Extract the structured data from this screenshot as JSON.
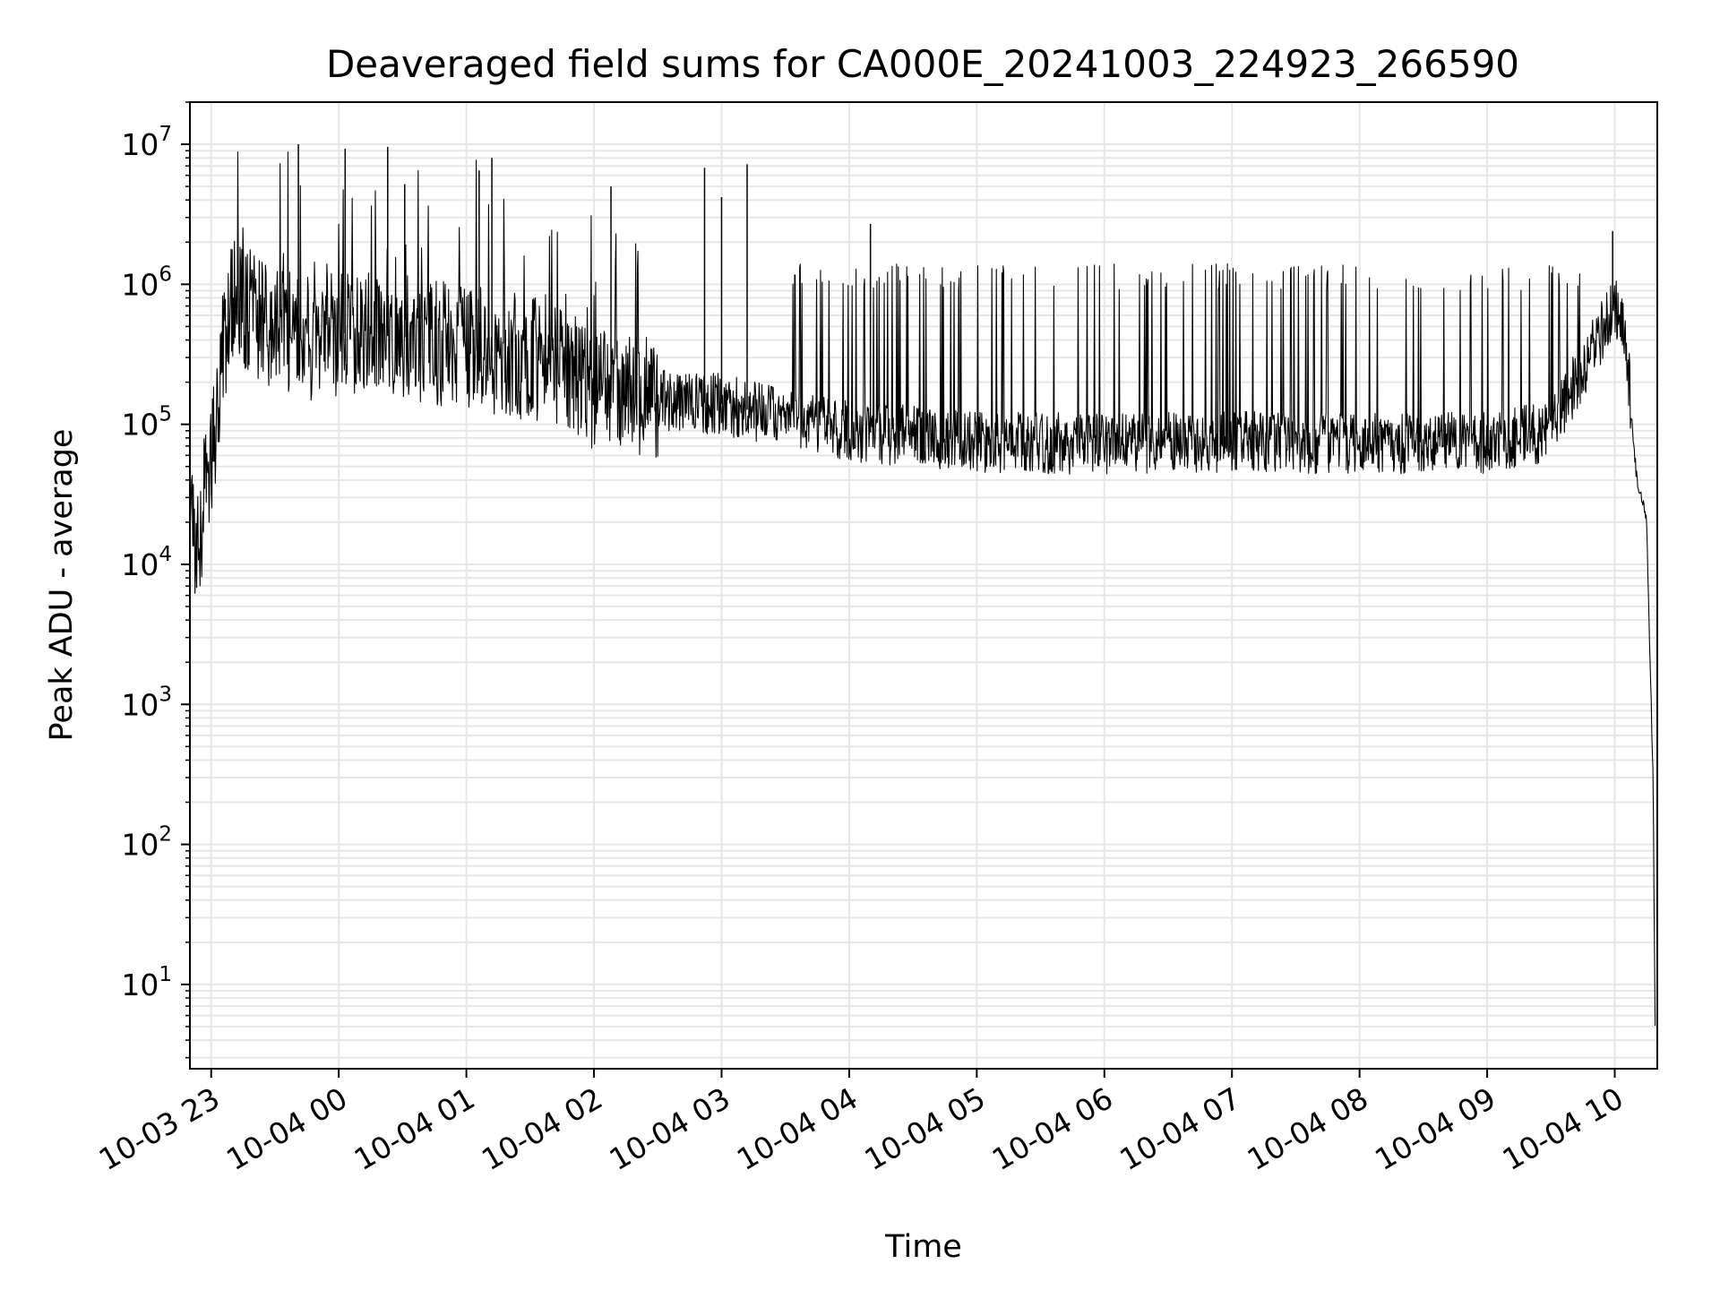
{
  "chart_data": {
    "type": "line",
    "title": "Deaveraged field sums for CA000E_20241003_224923_266590",
    "xlabel": "Time",
    "ylabel": "Peak ADU - average",
    "yscale": "log",
    "ylim": [
      2.5,
      20000000
    ],
    "xlim": [
      "2024-10-03 22:50:00",
      "2024-10-04 10:20:00"
    ],
    "x_ticks": [
      {
        "value": "2024-10-03 23:00",
        "label": "10-03 23"
      },
      {
        "value": "2024-10-04 00:00",
        "label": "10-04 00"
      },
      {
        "value": "2024-10-04 01:00",
        "label": "10-04 01"
      },
      {
        "value": "2024-10-04 02:00",
        "label": "10-04 02"
      },
      {
        "value": "2024-10-04 03:00",
        "label": "10-04 03"
      },
      {
        "value": "2024-10-04 04:00",
        "label": "10-04 04"
      },
      {
        "value": "2024-10-04 05:00",
        "label": "10-04 05"
      },
      {
        "value": "2024-10-04 06:00",
        "label": "10-04 06"
      },
      {
        "value": "2024-10-04 07:00",
        "label": "10-04 07"
      },
      {
        "value": "2024-10-04 08:00",
        "label": "10-04 08"
      },
      {
        "value": "2024-10-04 09:00",
        "label": "10-04 09"
      },
      {
        "value": "2024-10-04 10:00",
        "label": "10-04 10"
      }
    ],
    "y_ticks": [
      {
        "value": 10,
        "base": "10",
        "exp": "1"
      },
      {
        "value": 100,
        "base": "10",
        "exp": "2"
      },
      {
        "value": 1000,
        "base": "10",
        "exp": "3"
      },
      {
        "value": 10000,
        "base": "10",
        "exp": "4"
      },
      {
        "value": 100000,
        "base": "10",
        "exp": "5"
      },
      {
        "value": 1000000,
        "base": "10",
        "exp": "6"
      },
      {
        "value": 10000000,
        "base": "10",
        "exp": "7"
      }
    ],
    "grid": true,
    "line_color": "#000000",
    "grid_color": "#e6e6e6",
    "series": [
      {
        "x": [
          "2024-10-03 22:50",
          "2024-10-03 22:52",
          "2024-10-03 22:55",
          "2024-10-03 22:57",
          "2024-10-03 23:00",
          "2024-10-03 23:05",
          "2024-10-03 23:10",
          "2024-10-03 23:20",
          "2024-10-03 23:30",
          "2024-10-03 23:45",
          "2024-10-04 00:00",
          "2024-10-04 00:30",
          "2024-10-04 01:00",
          "2024-10-04 01:30",
          "2024-10-04 02:00",
          "2024-10-04 02:30",
          "2024-10-04 03:00",
          "2024-10-04 03:30",
          "2024-10-04 04:00",
          "2024-10-04 05:00",
          "2024-10-04 06:00",
          "2024-10-04 07:00",
          "2024-10-04 08:00",
          "2024-10-04 09:00",
          "2024-10-04 09:30",
          "2024-10-04 10:00",
          "2024-10-04 10:05",
          "2024-10-04 10:10",
          "2024-10-04 10:15",
          "2024-10-04 10:18",
          "2024-10-04 10:19"
        ],
        "values": [
          20000,
          15000,
          12000,
          60000,
          45000,
          300000,
          800000,
          600000,
          500000,
          400000,
          450000,
          420000,
          350000,
          300000,
          180000,
          150000,
          140000,
          110000,
          90000,
          75000,
          72000,
          75000,
          73000,
          74000,
          90000,
          700000,
          450000,
          45000,
          20000,
          300,
          5
        ]
      }
    ],
    "spikes": [
      {
        "x": "2024-10-03 23:41",
        "value": 10000000
      },
      {
        "x": "2024-10-04 00:03",
        "value": 9300000
      },
      {
        "x": "2024-10-04 00:23",
        "value": 9600000
      },
      {
        "x": "2024-10-04 00:31",
        "value": 5200000
      },
      {
        "x": "2024-10-04 01:06",
        "value": 6500000
      },
      {
        "x": "2024-10-04 01:12",
        "value": 8000000
      },
      {
        "x": "2024-10-04 02:08",
        "value": 5000000
      },
      {
        "x": "2024-10-04 02:52",
        "value": 6800000
      },
      {
        "x": "2024-10-04 03:12",
        "value": 7200000
      },
      {
        "x": "2024-10-04 03:00",
        "value": 4200000
      },
      {
        "x": "2024-10-04 04:10",
        "value": 2700000
      },
      {
        "x": "2024-10-04 09:59",
        "value": 2400000
      }
    ]
  }
}
